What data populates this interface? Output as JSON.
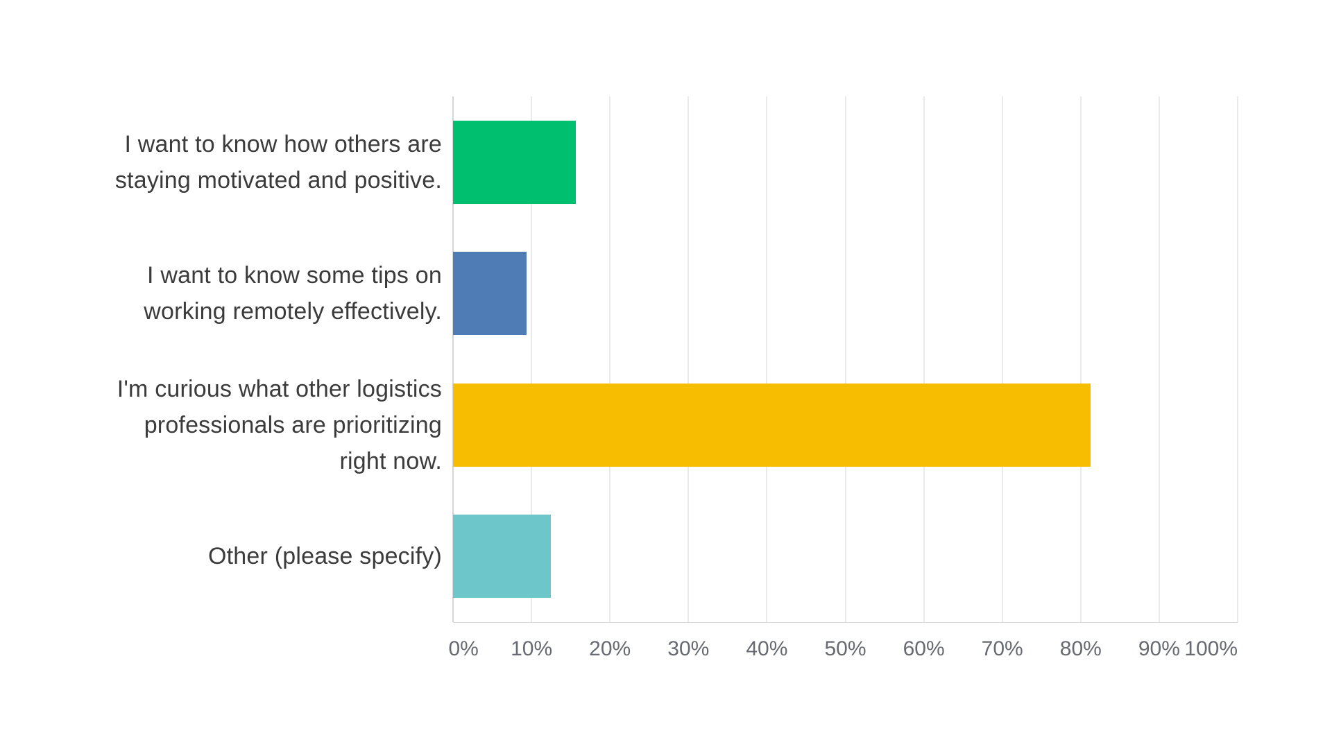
{
  "page": {
    "background": "#ffffff"
  },
  "chart_data": {
    "type": "bar",
    "orientation": "horizontal",
    "title": "",
    "categories": [
      "I want to know how others are staying motivated and positive.",
      "I want to know some tips on working remotely effectively.",
      "I'm curious what other logistics professionals are prioritizing right now.",
      "Other (please specify)"
    ],
    "category_lines": [
      [
        "I want to know how others are",
        "staying motivated and positive."
      ],
      [
        "I want to know some tips on",
        "working remotely effectively."
      ],
      [
        "I'm curious what other logistics",
        "professionals are prioritizing",
        "right now."
      ],
      [
        "Other (please specify)"
      ]
    ],
    "values": [
      15.63,
      9.38,
      81.25,
      12.5
    ],
    "bar_colors": [
      "#00BF6F",
      "#4F7CB5",
      "#F7BD00",
      "#6DC6CA"
    ],
    "xlabel": "",
    "ylabel": "",
    "xlim": [
      0,
      100
    ],
    "x_tick_labels": [
      "0%",
      "10%",
      "20%",
      "30%",
      "40%",
      "50%",
      "60%",
      "70%",
      "80%",
      "90%",
      "100%"
    ],
    "x_tick_values": [
      0,
      10,
      20,
      30,
      40,
      50,
      60,
      70,
      80,
      90,
      100
    ],
    "grid": true,
    "legend": false,
    "colors": {
      "gridline": "#eaeaea",
      "axis_line": "#d5d5d5",
      "category_text": "#3b3b3b",
      "tick_text": "#676b71"
    }
  }
}
